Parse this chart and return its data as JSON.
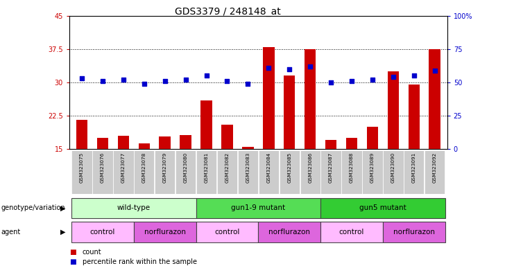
{
  "title": "GDS3379 / 248148_at",
  "samples": [
    "GSM323075",
    "GSM323076",
    "GSM323077",
    "GSM323078",
    "GSM323079",
    "GSM323080",
    "GSM323081",
    "GSM323082",
    "GSM323083",
    "GSM323084",
    "GSM323085",
    "GSM323086",
    "GSM323087",
    "GSM323088",
    "GSM323089",
    "GSM323090",
    "GSM323091",
    "GSM323092"
  ],
  "counts": [
    21.5,
    17.5,
    18.0,
    16.2,
    17.8,
    18.2,
    26.0,
    20.5,
    15.5,
    38.0,
    31.5,
    37.5,
    17.0,
    17.5,
    20.0,
    32.5,
    29.5,
    37.5
  ],
  "percentile_ranks": [
    53,
    51,
    52,
    49,
    51,
    52,
    55,
    51,
    49,
    61,
    60,
    62,
    50,
    51,
    52,
    54,
    55,
    59
  ],
  "ylim_left": [
    15,
    45
  ],
  "ylim_right": [
    0,
    100
  ],
  "yticks_left": [
    15,
    22.5,
    30,
    37.5,
    45
  ],
  "ytick_labels_left": [
    "15",
    "22.5",
    "30",
    "37.5",
    "45"
  ],
  "yticks_right": [
    0,
    25,
    50,
    75,
    100
  ],
  "ytick_labels_right": [
    "0",
    "25",
    "50",
    "75",
    "100%"
  ],
  "bar_color": "#cc0000",
  "dot_color": "#0000cc",
  "genotype_groups": [
    {
      "label": "wild-type",
      "start": 0,
      "end": 6,
      "color": "#ccffcc"
    },
    {
      "label": "gun1-9 mutant",
      "start": 6,
      "end": 12,
      "color": "#55dd55"
    },
    {
      "label": "gun5 mutant",
      "start": 12,
      "end": 18,
      "color": "#33cc33"
    }
  ],
  "agent_groups": [
    {
      "label": "control",
      "start": 0,
      "end": 3,
      "color": "#ffbbff"
    },
    {
      "label": "norflurazon",
      "start": 3,
      "end": 6,
      "color": "#dd66dd"
    },
    {
      "label": "control",
      "start": 6,
      "end": 9,
      "color": "#ffbbff"
    },
    {
      "label": "norflurazon",
      "start": 9,
      "end": 12,
      "color": "#dd66dd"
    },
    {
      "label": "control",
      "start": 12,
      "end": 15,
      "color": "#ffbbff"
    },
    {
      "label": "norflurazon",
      "start": 15,
      "end": 18,
      "color": "#dd66dd"
    }
  ],
  "legend_count_color": "#cc0000",
  "legend_dot_color": "#0000cc"
}
